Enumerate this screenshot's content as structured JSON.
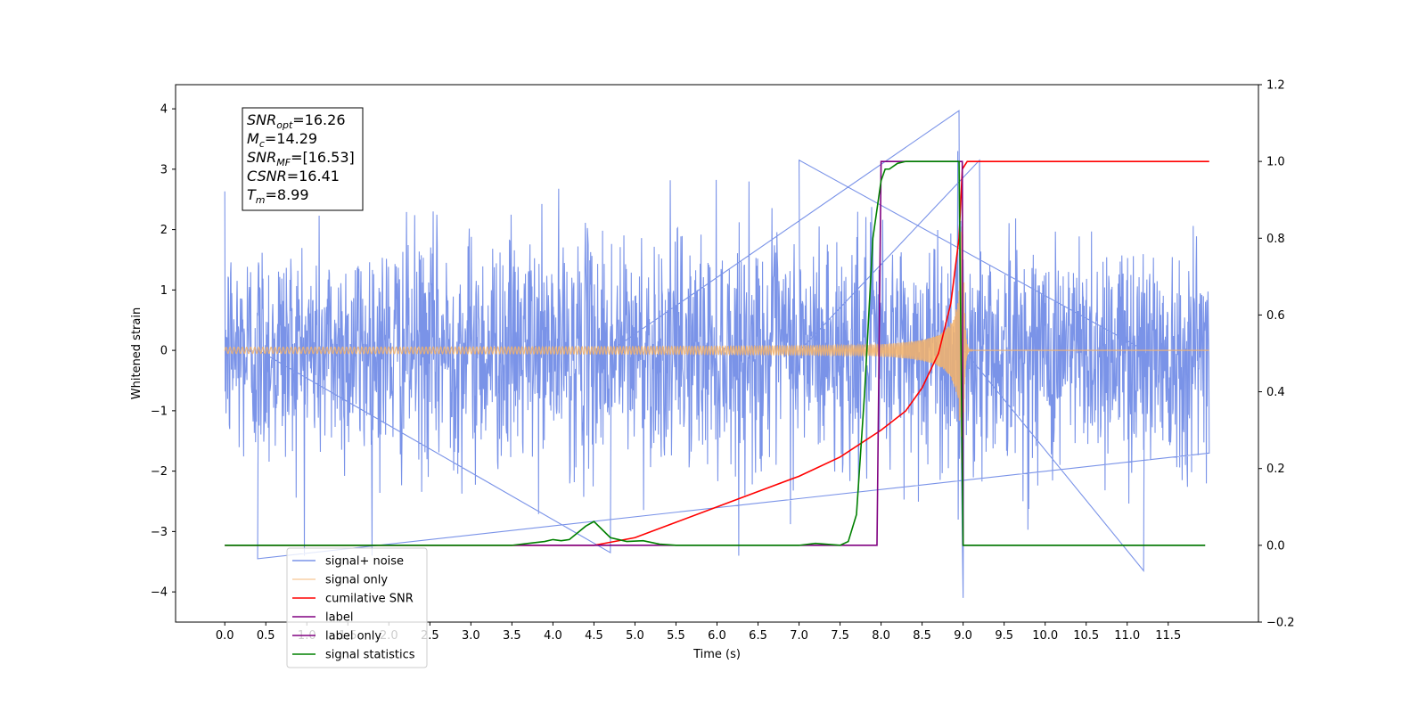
{
  "chart_data": {
    "type": "line",
    "xlabel": "Time (s)",
    "ylabel": "Whitened strain",
    "xlim": [
      -0.6,
      12.6
    ],
    "ylim": [
      -4.5,
      4.4
    ],
    "y2lim": [
      -0.2,
      1.2
    ],
    "x_ticks": [
      0.0,
      0.5,
      1.0,
      1.5,
      2.0,
      2.5,
      3.0,
      3.5,
      4.0,
      4.5,
      5.0,
      5.5,
      6.0,
      6.5,
      7.0,
      7.5,
      8.0,
      8.5,
      9.0,
      9.5,
      10.0,
      10.5,
      11.0,
      11.5
    ],
    "x_tick_labels": [
      "0.0",
      "0.5",
      "1.0",
      "1.5",
      "2.0",
      "2.5",
      "3.0",
      "3.5",
      "4.0",
      "4.5",
      "5.0",
      "5.5",
      "6.0",
      "6.5",
      "7.0",
      "7.5",
      "8.0",
      "8.5",
      "9.0",
      "9.5",
      "10.0",
      "10.5",
      "11.0",
      "11.5"
    ],
    "y_ticks": [
      -4,
      -3,
      -2,
      -1,
      0,
      1,
      2,
      3,
      4
    ],
    "y_tick_labels": [
      "−4",
      "−3",
      "−2",
      "−1",
      "0",
      "1",
      "2",
      "3",
      "4"
    ],
    "y2_ticks": [
      -0.2,
      0.0,
      0.2,
      0.4,
      0.6,
      0.8,
      1.0,
      1.2
    ],
    "y2_tick_labels": [
      "−0.2",
      "0.0",
      "0.2",
      "0.4",
      "0.6",
      "0.8",
      "1.0",
      "1.2"
    ],
    "grid": false,
    "legend_position": "lower-left",
    "info_box": [
      {
        "main": "SNR",
        "sub": "opt",
        "rest": "=16.26"
      },
      {
        "main": "M",
        "sub": "c",
        "rest": "=14.29"
      },
      {
        "main": "SNR",
        "sub": "MF",
        "rest": "=[16.53]"
      },
      {
        "main": "CSNR",
        "sub": "",
        "rest": "=16.41"
      },
      {
        "main": "T",
        "sub": "m",
        "rest": "=8.99"
      }
    ],
    "series": [
      {
        "name": "signal+ noise",
        "axis": "left",
        "color": "#7a93e8",
        "description_range": [
          -3.6,
          4.0
        ],
        "x_range": [
          0.0,
          12.0
        ],
        "noise_std": 1.0,
        "peaks": [
          [
            0.4,
            -3.45
          ],
          [
            4.7,
            -3.35
          ],
          [
            8.95,
            3.97
          ],
          [
            9.0,
            -4.1
          ],
          [
            11.2,
            -3.65
          ],
          [
            7.0,
            3.15
          ],
          [
            9.2,
            3.15
          ]
        ]
      },
      {
        "name": "signal only",
        "axis": "left",
        "color": "#f5b36a",
        "chirp": {
          "t_merge": 9.0,
          "peak_amplitude": 2.05,
          "start_time": 0.0,
          "end_time": 12.0
        }
      },
      {
        "name": "cumilative SNR",
        "axis": "right",
        "color": "#ff0000",
        "x": [
          0.0,
          4.5,
          5.0,
          5.5,
          6.0,
          6.5,
          7.0,
          7.5,
          8.0,
          8.3,
          8.5,
          8.7,
          8.85,
          8.95,
          8.99,
          9.05,
          12.0
        ],
        "y": [
          0.0,
          0.0,
          0.02,
          0.06,
          0.1,
          0.14,
          0.18,
          0.23,
          0.3,
          0.35,
          0.41,
          0.5,
          0.63,
          0.8,
          0.98,
          1.0,
          1.0
        ]
      },
      {
        "name": "label",
        "axis": "right",
        "color": "#800080",
        "x": [
          0.0,
          7.95,
          8.0,
          8.99,
          9.0,
          11.95
        ],
        "y": [
          0.0,
          0.0,
          1.0,
          1.0,
          0.0,
          0.0
        ]
      },
      {
        "name": "label only",
        "axis": "right",
        "color": "#800080",
        "hidden_in_plot": true
      },
      {
        "name": "signal statistics",
        "axis": "right",
        "color": "#008000",
        "x": [
          0.0,
          3.5,
          3.7,
          3.9,
          4.0,
          4.1,
          4.2,
          4.4,
          4.5,
          4.7,
          4.9,
          5.1,
          5.3,
          5.5,
          7.0,
          7.2,
          7.5,
          7.6,
          7.7,
          7.8,
          7.9,
          8.0,
          8.05,
          8.1,
          8.2,
          8.3,
          8.5,
          8.9,
          8.95,
          9.0,
          11.95
        ],
        "y": [
          0.0,
          0.0,
          0.005,
          0.01,
          0.015,
          0.012,
          0.015,
          0.05,
          0.062,
          0.02,
          0.01,
          0.012,
          0.003,
          0.0,
          0.0,
          0.005,
          0.0,
          0.01,
          0.08,
          0.4,
          0.8,
          0.95,
          0.98,
          0.98,
          0.995,
          1.0,
          1.0,
          1.0,
          1.0,
          0.0,
          0.0
        ]
      }
    ]
  }
}
